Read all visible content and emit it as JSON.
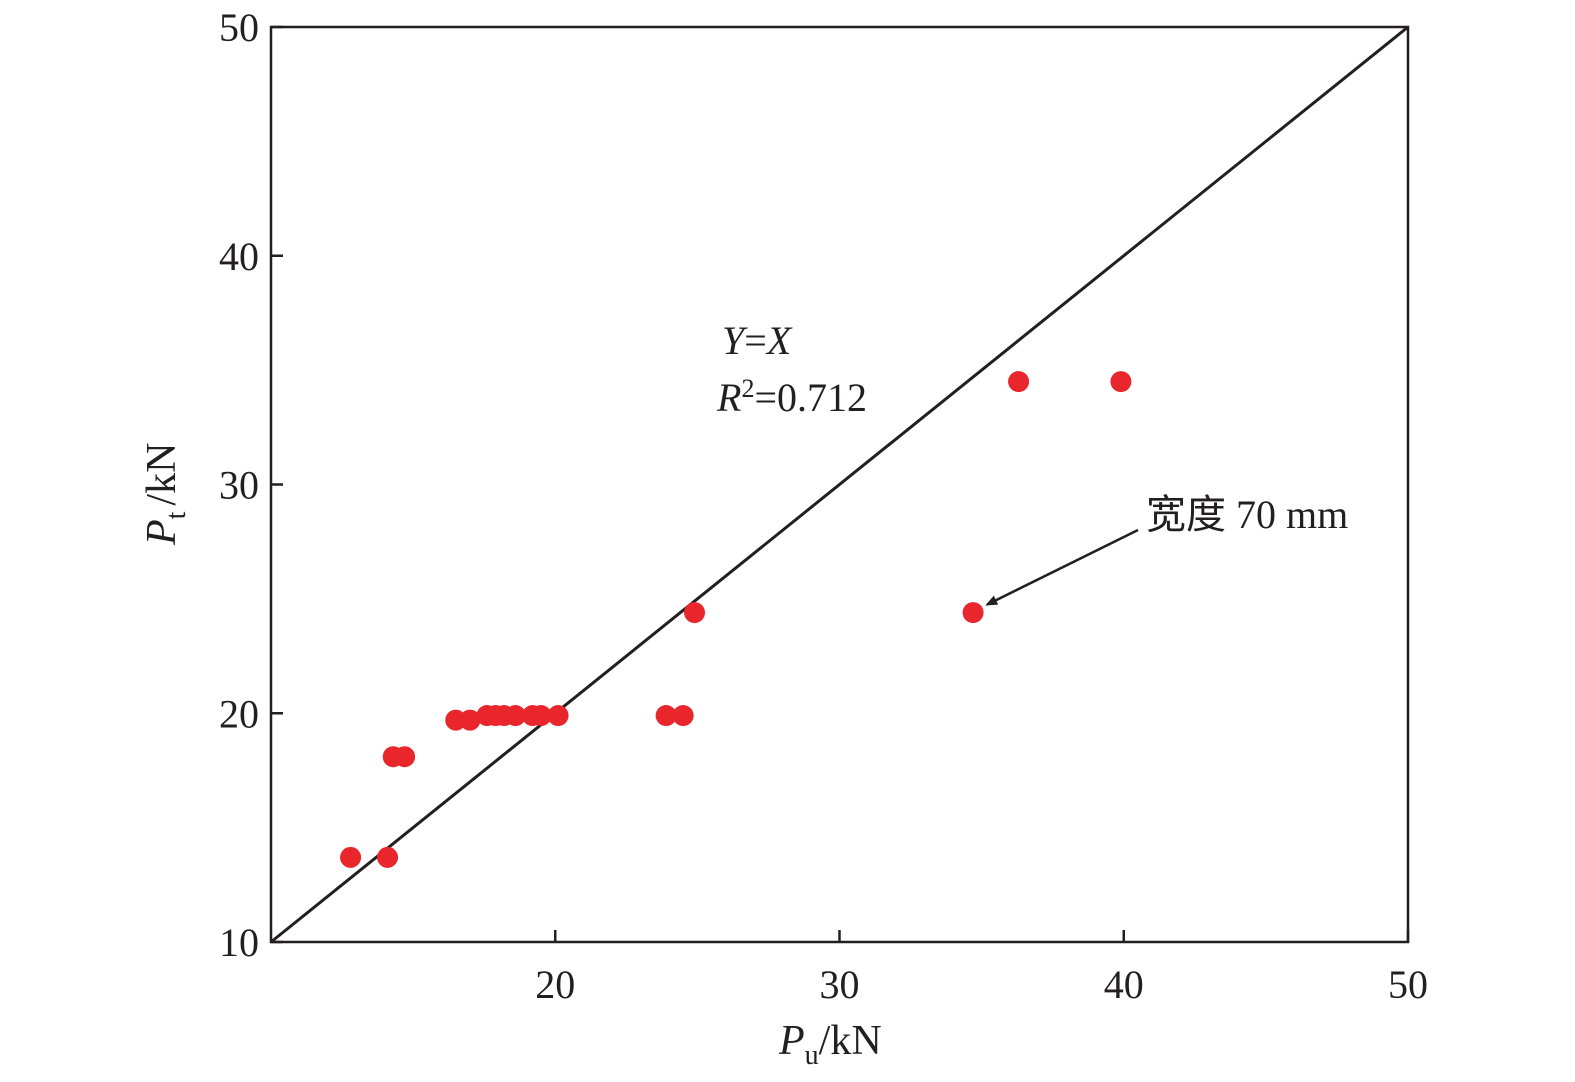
{
  "chart_data": {
    "type": "scatter",
    "xlim": [
      10,
      50
    ],
    "ylim": [
      10,
      50
    ],
    "x_ticks": [
      20,
      30,
      40,
      50
    ],
    "y_ticks": [
      10,
      20,
      30,
      40,
      50
    ],
    "xlabel": {
      "main": "P",
      "sub": "u",
      "unit": "/kN"
    },
    "ylabel": {
      "main": "P",
      "sub": "t",
      "unit": "/kN"
    },
    "grid": false,
    "legend": "none",
    "point_color": "#e8262c",
    "line_color": "#231f20",
    "reference_line": {
      "label_var1": "Y",
      "label_op": "=",
      "label_var2": "X",
      "from": [
        10,
        10
      ],
      "to": [
        50,
        50
      ]
    },
    "r2_label": {
      "var": "R",
      "sup": "2",
      "value": "=0.712"
    },
    "annotation": {
      "text": "宽度 70 mm",
      "target": [
        34.7,
        24.4
      ]
    },
    "points": [
      [
        12.8,
        13.7
      ],
      [
        14.1,
        13.7
      ],
      [
        14.3,
        18.1
      ],
      [
        14.7,
        18.1
      ],
      [
        16.5,
        19.7
      ],
      [
        17.0,
        19.7
      ],
      [
        17.6,
        19.9
      ],
      [
        17.9,
        19.9
      ],
      [
        18.2,
        19.9
      ],
      [
        18.6,
        19.9
      ],
      [
        19.2,
        19.9
      ],
      [
        19.5,
        19.9
      ],
      [
        20.1,
        19.9
      ],
      [
        23.9,
        19.9
      ],
      [
        24.5,
        19.9
      ],
      [
        24.9,
        24.4
      ],
      [
        34.7,
        24.4
      ],
      [
        36.3,
        34.5
      ],
      [
        39.9,
        34.5
      ]
    ]
  }
}
